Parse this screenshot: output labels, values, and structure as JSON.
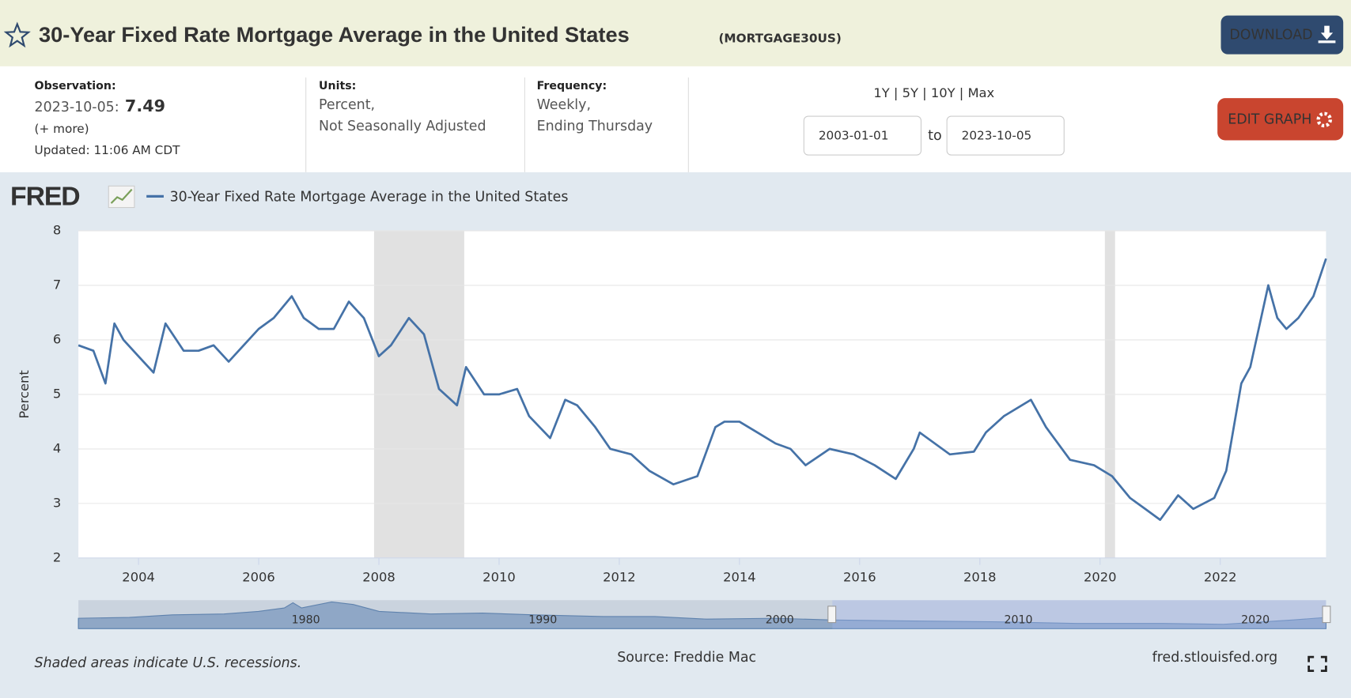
{
  "header": {
    "title": "30-Year Fixed Rate Mortgage Average in the United States",
    "series_id": "(MORTGAGE30US)",
    "download": "DOWNLOAD"
  },
  "info": {
    "observation": {
      "label": "Observation:",
      "date": "2023-10-05:",
      "value": "7.49",
      "more": "(+ more)",
      "updated": "Updated: 11:06 AM CDT"
    },
    "units": {
      "label": "Units:",
      "lines": [
        "Percent,",
        "Not Seasonally Adjusted"
      ]
    },
    "frequency": {
      "label": "Frequency:",
      "lines": [
        "Weekly,",
        "Ending Thursday"
      ]
    },
    "ranges": "1Y | 5Y | 10Y | Max",
    "start": "2003-01-01",
    "to": "to",
    "end": "2023-10-05",
    "edit": "EDIT GRAPH"
  },
  "logo": "FRED",
  "chart_data": {
    "type": "line",
    "ylabel": "Percent",
    "x": [
      2003.0,
      2003.25,
      2003.45,
      2003.6,
      2003.75,
      2004.0,
      2004.25,
      2004.45,
      2004.75,
      2005.0,
      2005.25,
      2005.5,
      2005.75,
      2006.0,
      2006.25,
      2006.55,
      2006.75,
      2007.0,
      2007.25,
      2007.5,
      2007.75,
      2008.0,
      2008.2,
      2008.5,
      2008.75,
      2008.9,
      2009.0,
      2009.3,
      2009.45,
      2009.75,
      2010.0,
      2010.3,
      2010.5,
      2010.85,
      2011.1,
      2011.3,
      2011.6,
      2011.85,
      2012.2,
      2012.5,
      2012.9,
      2013.3,
      2013.6,
      2013.75,
      2014.0,
      2014.3,
      2014.6,
      2014.85,
      2015.1,
      2015.5,
      2015.9,
      2016.25,
      2016.6,
      2016.9,
      2017.0,
      2017.5,
      2017.9,
      2018.1,
      2018.4,
      2018.85,
      2019.1,
      2019.5,
      2019.9,
      2020.2,
      2020.5,
      2020.75,
      2021.0,
      2021.3,
      2021.55,
      2021.9,
      2022.1,
      2022.35,
      2022.5,
      2022.8,
      2022.95,
      2023.1,
      2023.3,
      2023.55,
      2023.76
    ],
    "series": [
      {
        "name": "30-Year Fixed Rate Mortgage Average in the United States",
        "color": "#4572a7",
        "values": [
          5.9,
          5.8,
          5.2,
          6.3,
          6.0,
          5.7,
          5.4,
          6.3,
          5.8,
          5.8,
          5.9,
          5.6,
          5.9,
          6.2,
          6.4,
          6.8,
          6.4,
          6.2,
          6.2,
          6.7,
          6.4,
          5.7,
          5.9,
          6.4,
          6.1,
          5.5,
          5.1,
          4.8,
          5.5,
          5.0,
          5.0,
          5.1,
          4.6,
          4.2,
          4.9,
          4.8,
          4.4,
          4.0,
          3.9,
          3.6,
          3.35,
          3.5,
          4.4,
          4.5,
          4.5,
          4.3,
          4.1,
          4.0,
          3.7,
          4.0,
          3.9,
          3.7,
          3.45,
          4.0,
          4.3,
          3.9,
          3.95,
          4.3,
          4.6,
          4.9,
          4.4,
          3.8,
          3.7,
          3.5,
          3.1,
          2.9,
          2.7,
          3.15,
          2.9,
          3.1,
          3.6,
          5.2,
          5.5,
          7.0,
          6.4,
          6.2,
          6.4,
          6.8,
          7.49
        ]
      }
    ],
    "xlim": [
      2003.0,
      2023.76
    ],
    "xticks": [
      2004,
      2006,
      2008,
      2010,
      2012,
      2014,
      2016,
      2018,
      2020,
      2022
    ],
    "ylim": [
      2,
      8
    ],
    "yticks": [
      2,
      3,
      4,
      5,
      6,
      7,
      8
    ],
    "grid": true,
    "recessions": [
      [
        2007.92,
        2009.42
      ],
      [
        2020.08,
        2020.25
      ]
    ]
  },
  "navigator": {
    "labels": [
      "1980",
      "1990",
      "2000",
      "2010",
      "2020"
    ]
  },
  "footer": {
    "note": "Shaded areas indicate U.S. recessions.",
    "source": "Source: Freddie Mac",
    "site": "fred.stlouisfed.org"
  }
}
